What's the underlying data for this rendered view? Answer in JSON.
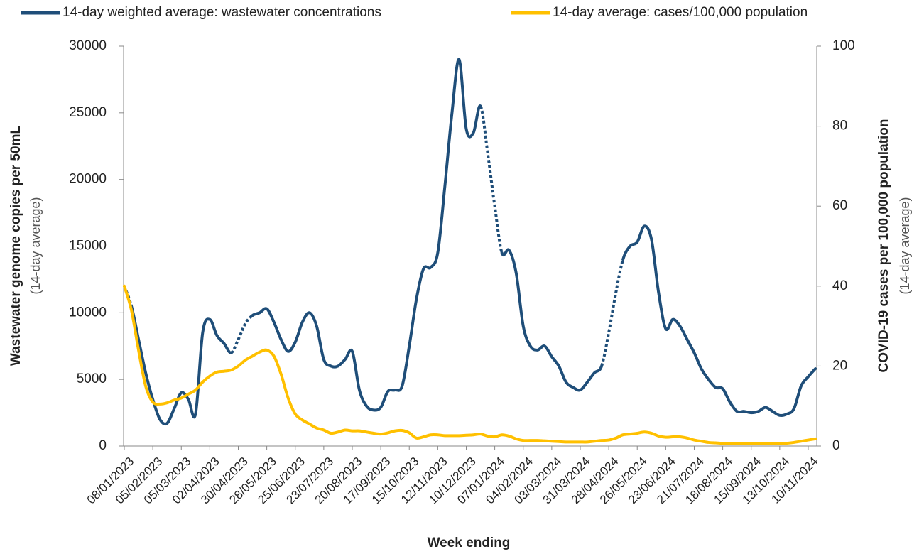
{
  "chart_data": {
    "type": "line",
    "xlabel": "Week ending",
    "ylabel": "Wastewater genome copies per 50mL",
    "ylabel_sub": "(14-day average)",
    "y2label": "COVID-19 cases per 100,000 population",
    "y2label_sub": "(14-day average)",
    "legend": "top",
    "grid": false,
    "ylim": [
      0,
      30000
    ],
    "yticks": [
      0,
      5000,
      10000,
      15000,
      20000,
      25000,
      30000
    ],
    "y2lim": [
      0,
      100
    ],
    "y2ticks": [
      0,
      20,
      40,
      60,
      80,
      100
    ],
    "categories": [
      "08/01/2023",
      null,
      null,
      null,
      "05/02/2023",
      null,
      null,
      null,
      "05/03/2023",
      null,
      null,
      null,
      "02/04/2023",
      null,
      null,
      null,
      "30/04/2023",
      null,
      null,
      null,
      "28/05/2023",
      null,
      null,
      null,
      "25/06/2023",
      null,
      null,
      null,
      "23/07/2023",
      null,
      null,
      null,
      "20/08/2023",
      null,
      null,
      null,
      "17/09/2023",
      null,
      null,
      null,
      "15/10/2023",
      null,
      null,
      null,
      "12/11/2023",
      null,
      null,
      null,
      "10/12/2023",
      null,
      null,
      null,
      "07/01/2024",
      null,
      null,
      null,
      "04/02/2024",
      null,
      null,
      null,
      "03/03/2024",
      null,
      null,
      null,
      "31/03/2024",
      null,
      null,
      null,
      "28/04/2024",
      null,
      null,
      null,
      "26/05/2024",
      null,
      null,
      null,
      "23/06/2024",
      null,
      null,
      null,
      "21/07/2024",
      null,
      null,
      null,
      "18/08/2024",
      null,
      null,
      null,
      "15/09/2024",
      null,
      null,
      null,
      "13/10/2024",
      null,
      null,
      null,
      "10/11/2024",
      null
    ],
    "series": [
      {
        "name": "14-day weighted average: wastewater concentrations",
        "color": "#1f4e79",
        "axis": "y",
        "dotted_spans": [
          [
            0,
            1
          ],
          [
            15,
            18
          ],
          [
            50,
            53
          ],
          [
            67,
            70
          ]
        ],
        "values": [
          12000,
          10500,
          8000,
          5500,
          3500,
          2000,
          1700,
          2800,
          4000,
          3500,
          2400,
          8500,
          9500,
          8300,
          7700,
          7000,
          8000,
          9200,
          9800,
          10000,
          10300,
          9300,
          8000,
          7100,
          7800,
          9300,
          10000,
          9000,
          6500,
          6000,
          6000,
          6500,
          7100,
          4200,
          3000,
          2700,
          2900,
          4100,
          4200,
          4500,
          7500,
          11000,
          13300,
          13400,
          14500,
          19500,
          25000,
          29000,
          23800,
          23500,
          25500,
          22000,
          18000,
          14500,
          14700,
          13000,
          9000,
          7500,
          7200,
          7500,
          6700,
          6000,
          4800,
          4400,
          4200,
          4800,
          5500,
          6000,
          8500,
          11500,
          14000,
          15000,
          15300,
          16500,
          15500,
          11500,
          8800,
          9500,
          9000,
          8000,
          7000,
          5800,
          5000,
          4400,
          4300,
          3300,
          2600,
          2600,
          2500,
          2600,
          2900,
          2600,
          2300,
          2400,
          2800,
          4500,
          5200,
          5800
        ]
      },
      {
        "name": "14-day average: cases/100,000 population",
        "color": "#ffc000",
        "axis": "y2",
        "values": [
          40,
          34,
          24,
          15,
          11,
          10.5,
          10.8,
          11.5,
          12,
          13,
          14,
          16,
          17.5,
          18.5,
          18.7,
          19,
          20,
          21.5,
          22.5,
          23.5,
          24,
          22.5,
          18,
          12,
          8,
          6.5,
          5.5,
          4.5,
          4,
          3.2,
          3.5,
          4,
          3.8,
          3.8,
          3.5,
          3.2,
          3,
          3.3,
          3.8,
          3.9,
          3.3,
          2,
          2.3,
          2.8,
          2.8,
          2.6,
          2.6,
          2.6,
          2.7,
          2.8,
          3,
          2.5,
          2.3,
          2.8,
          2.5,
          1.8,
          1.4,
          1.4,
          1.4,
          1.3,
          1.2,
          1.1,
          1.0,
          1.0,
          1.0,
          1.0,
          1.2,
          1.4,
          1.5,
          2.0,
          2.8,
          3.0,
          3.2,
          3.5,
          3.2,
          2.5,
          2.2,
          2.3,
          2.3,
          2.0,
          1.5,
          1.2,
          0.9,
          0.8,
          0.7,
          0.7,
          0.6,
          0.6,
          0.6,
          0.6,
          0.6,
          0.6,
          0.6,
          0.7,
          0.9,
          1.2,
          1.5,
          1.8
        ]
      }
    ]
  }
}
